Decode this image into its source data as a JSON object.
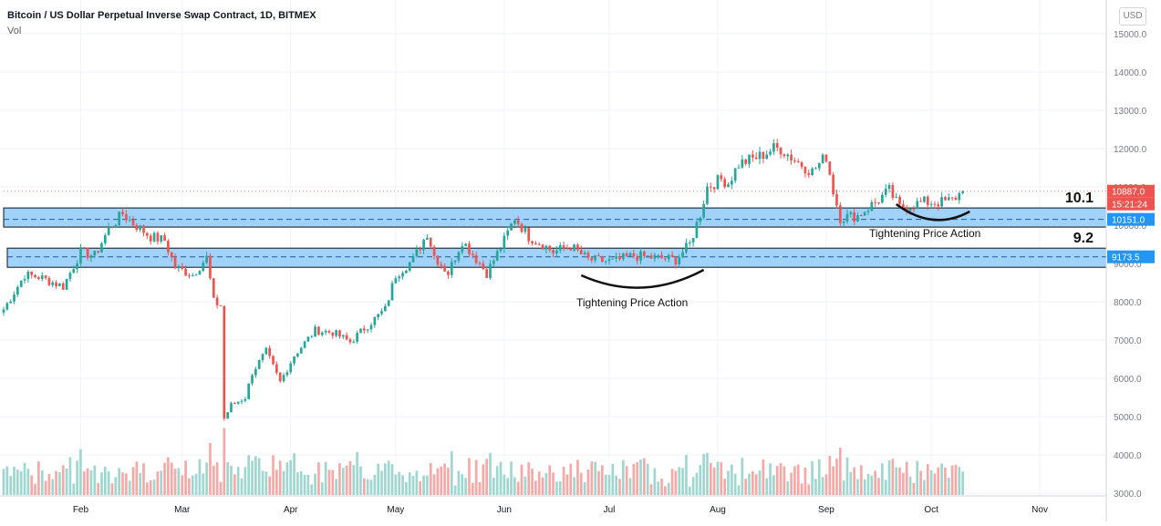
{
  "header": {
    "title": "Bitcoin / US Dollar Perpetual Inverse Swap Contract, 1D, BITMEX",
    "volume_label": "Vol",
    "currency_button": "USD"
  },
  "colors": {
    "up": "#26a69a",
    "down": "#ef5350",
    "vol_up": "#9fd7d0",
    "vol_down": "#f5a9a7",
    "zone_fill": "#90caf9",
    "zone_border": "#111111",
    "current_price": "#ef5350",
    "level_badge": "#2196f3",
    "annotation": "#111111"
  },
  "chart_data": {
    "type": "candlestick",
    "title": "Bitcoin / US Dollar Perpetual Inverse Swap Contract, 1D, BITMEX",
    "yticks": [
      "15000.0",
      "14000.0",
      "13000.0",
      "12000.0",
      "11000.0",
      "10000.0",
      "9000.0",
      "8000.0",
      "7000.0",
      "6000.0",
      "5000.0",
      "4000.0",
      "3000.0"
    ],
    "ylim": [
      2980,
      15500
    ],
    "xticks": [
      "Feb",
      "Mar",
      "Apr",
      "May",
      "Jun",
      "Jul",
      "Aug",
      "Sep",
      "Oct",
      "Nov"
    ],
    "xlim": [
      "2020-01-10",
      "2020-11-20"
    ],
    "ohlc_anchors": [
      [
        "2020-01-10",
        7800
      ],
      [
        "2020-01-16",
        8700
      ],
      [
        "2020-01-20",
        8650
      ],
      [
        "2020-01-27",
        8400
      ],
      [
        "2020-02-01",
        9300
      ],
      [
        "2020-02-05",
        9200
      ],
      [
        "2020-02-09",
        9900
      ],
      [
        "2020-02-13",
        10300
      ],
      [
        "2020-02-16",
        10050
      ],
      [
        "2020-02-21",
        9700
      ],
      [
        "2020-02-25",
        9600
      ],
      [
        "2020-02-28",
        8900
      ],
      [
        "2020-03-04",
        8700
      ],
      [
        "2020-03-08",
        9150
      ],
      [
        "2020-03-10",
        8000
      ],
      [
        "2020-03-12",
        7900
      ],
      [
        "2020-03-13",
        4950
      ],
      [
        "2020-03-15",
        5300
      ],
      [
        "2020-03-19",
        5500
      ],
      [
        "2020-03-21",
        6150
      ],
      [
        "2020-03-25",
        6700
      ],
      [
        "2020-03-29",
        5900
      ],
      [
        "2020-04-02",
        6600
      ],
      [
        "2020-04-08",
        7250
      ],
      [
        "2020-04-13",
        7200
      ],
      [
        "2020-04-18",
        6950
      ],
      [
        "2020-04-22",
        7300
      ],
      [
        "2020-04-28",
        7800
      ],
      [
        "2020-05-01",
        8700
      ],
      [
        "2020-05-06",
        9100
      ],
      [
        "2020-05-10",
        9800
      ],
      [
        "2020-05-12",
        9200
      ],
      [
        "2020-05-16",
        8750
      ],
      [
        "2020-05-20",
        9600
      ],
      [
        "2020-05-25",
        9000
      ],
      [
        "2020-05-27",
        8750
      ],
      [
        "2020-06-01",
        9600
      ],
      [
        "2020-06-04",
        10200
      ],
      [
        "2020-06-08",
        9700
      ],
      [
        "2020-06-12",
        9500
      ],
      [
        "2020-06-15",
        9300
      ],
      [
        "2020-06-20",
        9450
      ],
      [
        "2020-06-25",
        9100
      ],
      [
        "2020-07-02",
        9050
      ],
      [
        "2020-07-08",
        9200
      ],
      [
        "2020-07-14",
        9150
      ],
      [
        "2020-07-20",
        9100
      ],
      [
        "2020-07-24",
        9500
      ],
      [
        "2020-07-27",
        10300
      ],
      [
        "2020-07-29",
        11000
      ],
      [
        "2020-08-02",
        11200
      ],
      [
        "2020-08-04",
        11100
      ],
      [
        "2020-08-07",
        11600
      ],
      [
        "2020-08-10",
        11700
      ],
      [
        "2020-08-13",
        11800
      ],
      [
        "2020-08-17",
        12000
      ],
      [
        "2020-08-19",
        12000
      ],
      [
        "2020-08-23",
        11700
      ],
      [
        "2020-08-28",
        11400
      ],
      [
        "2020-09-01",
        11800
      ],
      [
        "2020-09-03",
        10900
      ],
      [
        "2020-09-05",
        10200
      ],
      [
        "2020-09-10",
        10250
      ],
      [
        "2020-09-15",
        10600
      ],
      [
        "2020-09-19",
        10900
      ],
      [
        "2020-09-22",
        10450
      ],
      [
        "2020-09-24",
        10500
      ],
      [
        "2020-09-29",
        10600
      ],
      [
        "2020-10-04",
        10600
      ],
      [
        "2020-10-07",
        10650
      ],
      [
        "2020-10-10",
        10887
      ]
    ],
    "volume_range": [
      3000,
      4700
    ],
    "horizontal_zones": [
      {
        "from": 9950,
        "to": 10450,
        "center": 10151.0,
        "label": "10.1"
      },
      {
        "from": 8900,
        "to": 9400,
        "center": 9173.5,
        "label": "9.2"
      }
    ],
    "price_badges": [
      {
        "value": 10887.0,
        "text": "10887.0",
        "kind": "current"
      },
      {
        "text": "15:21:24",
        "kind": "countdown"
      },
      {
        "value": 10151.0,
        "text": "10151.0",
        "kind": "level"
      },
      {
        "value": 9173.5,
        "text": "9173.5",
        "kind": "level"
      }
    ],
    "annotations": [
      {
        "text": "Tightening Price Action",
        "curve_from": "2020-06-23",
        "curve_to": "2020-07-28"
      },
      {
        "text": "Tightening Price Action",
        "curve_from": "2020-09-21",
        "curve_to": "2020-10-12"
      }
    ],
    "grid": true
  }
}
